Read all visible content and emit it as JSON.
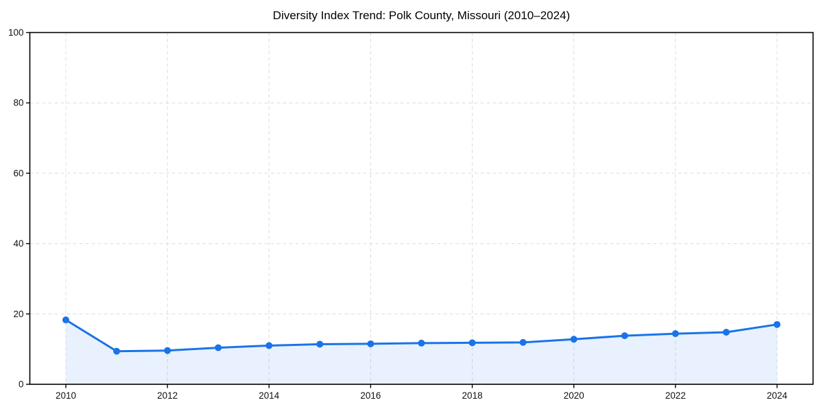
{
  "page": {
    "background_color": "#ffffff"
  },
  "chart_data": {
    "type": "line",
    "title": "Diversity Index Trend: Polk County, Missouri (2010–2024)",
    "xlabel": "",
    "ylabel": "",
    "x": [
      2010,
      2011,
      2012,
      2013,
      2014,
      2015,
      2016,
      2017,
      2018,
      2019,
      2020,
      2021,
      2022,
      2023,
      2024
    ],
    "series": [
      {
        "name": "Diversity Index",
        "values": [
          18.3,
          9.4,
          9.6,
          10.4,
          11.0,
          11.4,
          11.5,
          11.7,
          11.8,
          11.9,
          12.8,
          13.8,
          14.4,
          14.8,
          17.0
        ]
      }
    ],
    "xlim": [
      2009.28,
      2024.72
    ],
    "ylim": [
      0,
      100
    ],
    "x_tick_labels": [
      "2010",
      "2012",
      "2014",
      "2016",
      "2018",
      "2020",
      "2022",
      "2024"
    ],
    "x_tick_values": [
      2010,
      2012,
      2014,
      2016,
      2018,
      2020,
      2022,
      2024
    ],
    "y_tick_labels": [
      "0",
      "20",
      "40",
      "60",
      "80",
      "100"
    ],
    "y_tick_values": [
      0,
      20,
      40,
      60,
      80,
      100
    ],
    "grid": true,
    "grid_style": "dashed",
    "legend": false,
    "area_fill": true,
    "marker": "circle",
    "colors": {
      "line": "#1a73e8",
      "marker": "#1a73e8",
      "fill": "rgba(26, 115, 232, 0.10)",
      "grid": "#dcdcdc",
      "frame": "#000000",
      "tick_text": "#111111",
      "title_text": "#000000"
    }
  }
}
